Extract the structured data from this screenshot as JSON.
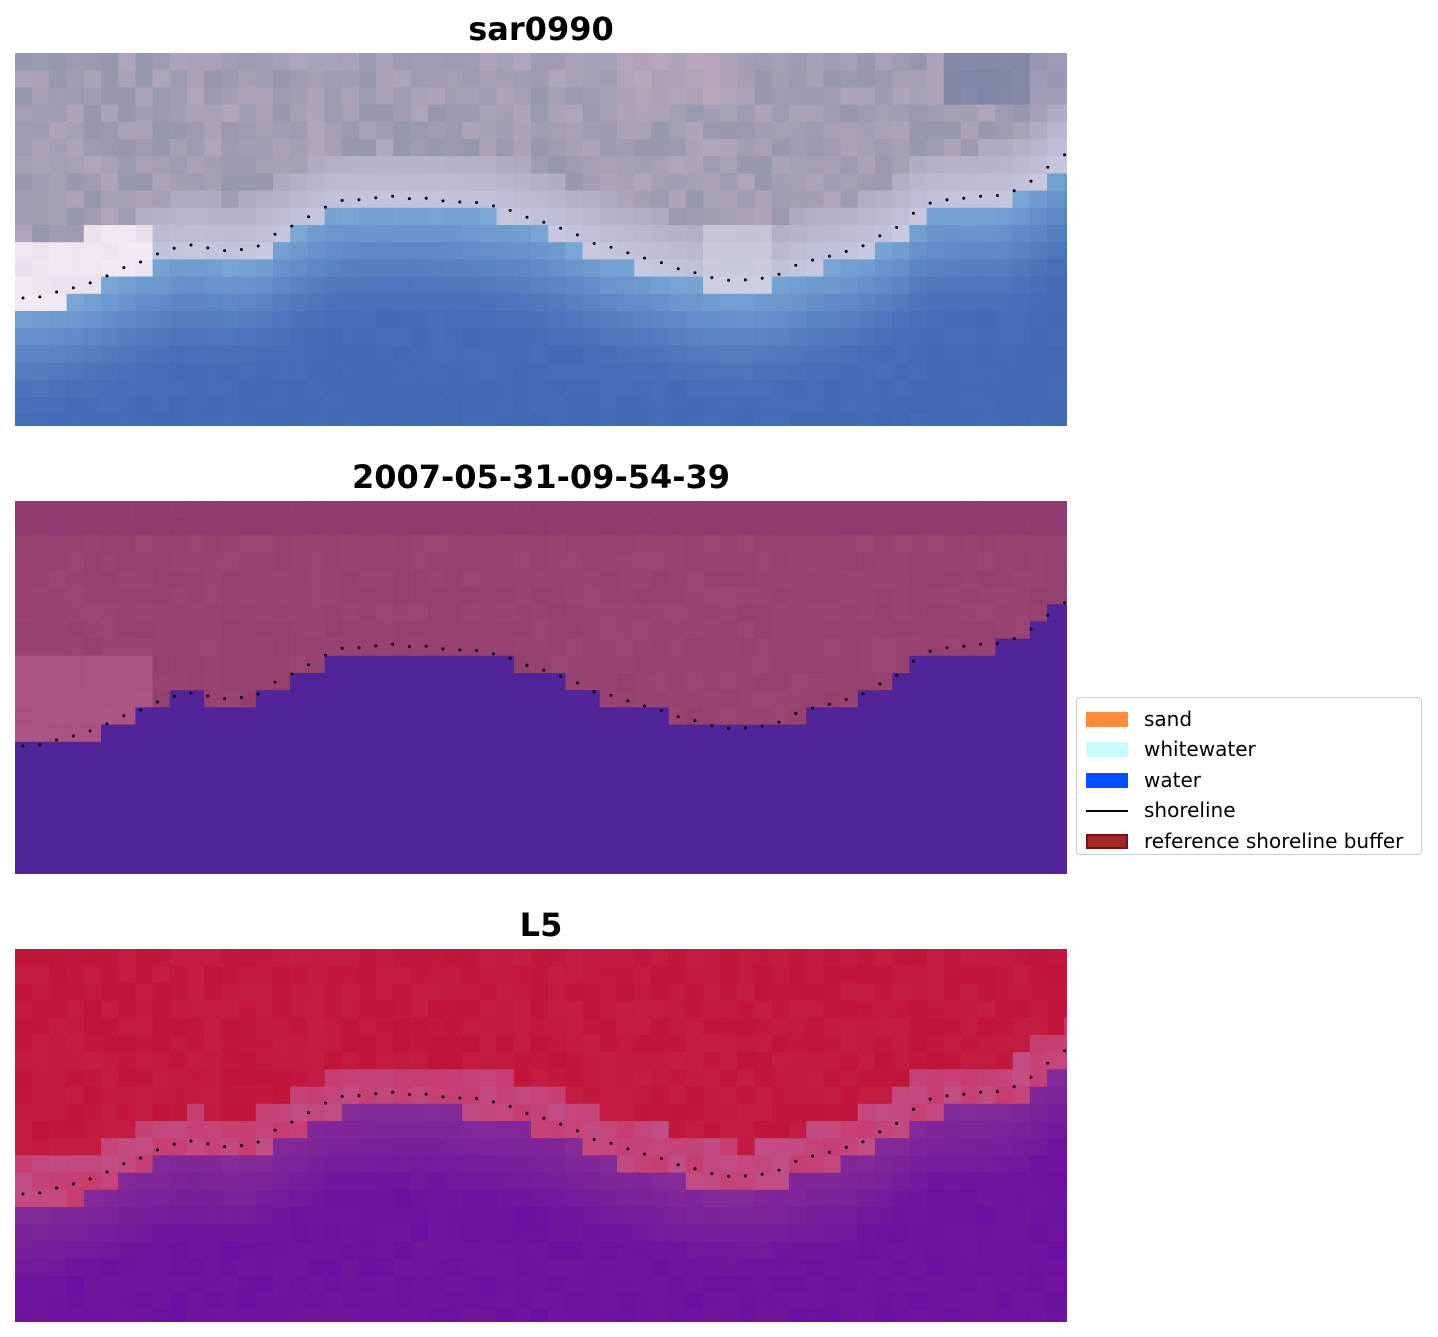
{
  "panels": [
    {
      "title": "sar0990",
      "style": "rgb"
    },
    {
      "title": "2007-05-31-09-54-39",
      "style": "classified"
    },
    {
      "title": "L5",
      "style": "index"
    }
  ],
  "legend": {
    "items": [
      {
        "label": "sand",
        "kind": "patch",
        "color": "#ff8c3c"
      },
      {
        "label": "whitewater",
        "kind": "patch",
        "color": "#c8fcfc"
      },
      {
        "label": "water",
        "kind": "patch",
        "color": "#0050ff"
      },
      {
        "label": "shoreline",
        "kind": "line",
        "color": "#000000"
      },
      {
        "label": "reference shoreline buffer",
        "kind": "patch",
        "color": "#a02828",
        "edge": "#7a1010"
      }
    ]
  },
  "colors": {
    "water_class": "#52249a",
    "land_class": "#94406f",
    "index_high": "#c0143a",
    "index_low": "#6a10a0",
    "shoreline_points": "#000000"
  }
}
